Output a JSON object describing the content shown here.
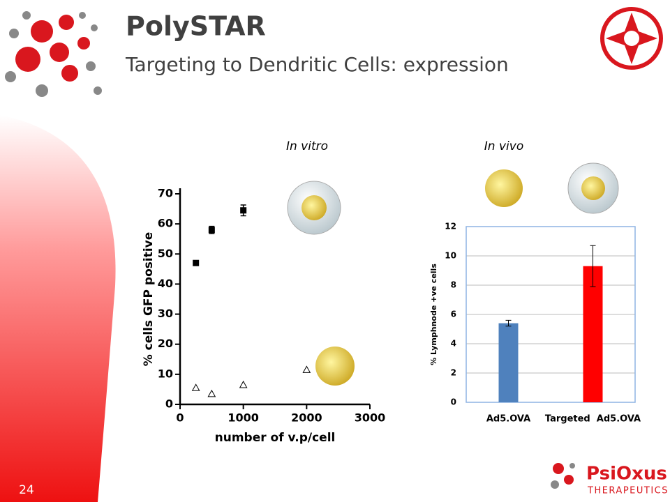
{
  "slide": {
    "title": "PolySTAR",
    "subtitle": "Targeting to Dendritic Cells: expression",
    "page_number": "24",
    "logo_name": "PsiOxus",
    "logo_tagline": "THERAPEUTICS"
  },
  "chart_data": [
    {
      "type": "scatter",
      "title": "In vitro",
      "xlabel": "number of v.p/cell",
      "ylabel": "% cells GFP positive",
      "xlim": [
        0,
        3000
      ],
      "xticks": [
        0,
        1000,
        2000,
        3000
      ],
      "ylim": [
        0,
        70
      ],
      "yticks": [
        0,
        10,
        20,
        30,
        40,
        50,
        60,
        70
      ],
      "series": [
        {
          "color": "#000000",
          "marker": "square",
          "x": [
            250,
            500,
            1000
          ],
          "values": [
            47,
            58,
            64.5
          ],
          "errors": [
            0.8,
            1.2,
            1.8
          ]
        },
        {
          "color": "#000000",
          "marker": "triangle",
          "x": [
            250,
            500,
            1000,
            2000
          ],
          "values": [
            5.5,
            3.5,
            6.5,
            11.5
          ]
        }
      ]
    },
    {
      "type": "bar",
      "title": "In vivo",
      "ylabel": "% Lymphnode +ve cells",
      "categories": [
        "Ad5.OVA",
        "Targeted  Ad5.OVA"
      ],
      "values": [
        5.4,
        9.3
      ],
      "errors": [
        0.2,
        1.4
      ],
      "colors": [
        "#4f81bd",
        "#ff0000"
      ],
      "ylim": [
        0,
        12
      ],
      "yticks": [
        0,
        2,
        4,
        6,
        8,
        10,
        12
      ],
      "grid": true
    }
  ]
}
